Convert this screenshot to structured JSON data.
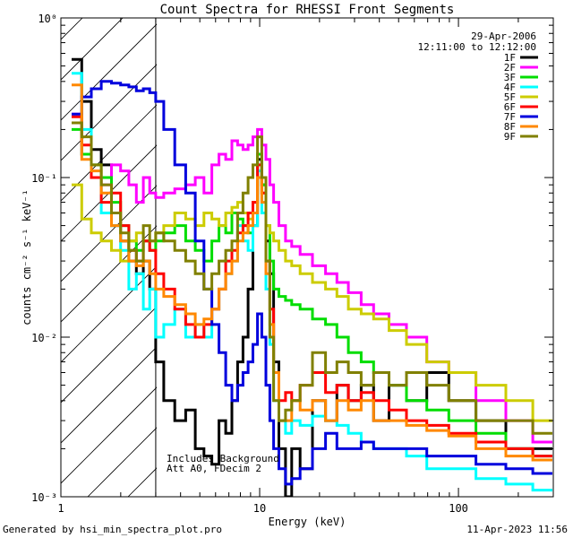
{
  "chart_data": {
    "type": "line",
    "title": "Count Spectra for RHESSI Front Segments",
    "xlabel": "Energy (keV)",
    "ylabel": "counts cm⁻² s⁻¹ keV⁻¹",
    "xscale": "log",
    "yscale": "log",
    "xlim": [
      1,
      300
    ],
    "ylim": [
      0.001,
      1
    ],
    "x_ticks": [
      {
        "value": 1,
        "label": "1"
      },
      {
        "value": 10,
        "label": "10"
      },
      {
        "value": 100,
        "label": "100"
      }
    ],
    "y_ticks": [
      {
        "value": 0.001,
        "label": "10⁻³"
      },
      {
        "value": 0.01,
        "label": "10⁻²"
      },
      {
        "value": 0.1,
        "label": "10⁻¹"
      },
      {
        "value": 1,
        "label": "10⁰"
      }
    ],
    "legend_position": "top-right",
    "date": "29-Apr-2006",
    "time_range": "12:11:00 to 12:12:00",
    "annotation_lines": [
      "Includes Background",
      "Att A0, FDecim 2"
    ],
    "hatched_region_x": [
      1,
      3
    ],
    "series": [
      {
        "name": "1F",
        "color": "#000000",
        "x": [
          1.2,
          1.35,
          1.5,
          1.7,
          1.9,
          2.1,
          2.3,
          2.5,
          2.7,
          2.9,
          3.1,
          3.5,
          4,
          4.5,
          5,
          5.5,
          6,
          6.5,
          7,
          7.5,
          8,
          8.5,
          9,
          9.5,
          10,
          10.5,
          11,
          11.5,
          12,
          13,
          14,
          15,
          17,
          20,
          23,
          26,
          30,
          35,
          40,
          50,
          60,
          80,
          100,
          150,
          200,
          280
        ],
        "y": [
          0.55,
          0.3,
          0.15,
          0.12,
          0.05,
          0.04,
          0.03,
          0.025,
          0.03,
          0.02,
          0.007,
          0.004,
          0.003,
          0.0035,
          0.002,
          0.0018,
          0.0016,
          0.003,
          0.0025,
          0.004,
          0.007,
          0.01,
          0.02,
          0.05,
          0.13,
          0.09,
          0.04,
          0.025,
          0.007,
          0.002,
          0.001,
          0.002,
          0.0015,
          0.004,
          0.003,
          0.005,
          0.004,
          0.005,
          0.003,
          0.005,
          0.004,
          0.006,
          0.004,
          0.003,
          0.002,
          0.002
        ]
      },
      {
        "name": "2F",
        "color": "#ff00ff",
        "x": [
          1.2,
          1.35,
          1.5,
          1.7,
          1.9,
          2.1,
          2.3,
          2.5,
          2.7,
          2.9,
          3.1,
          3.5,
          4,
          4.5,
          5,
          5.5,
          6,
          6.5,
          7,
          7.5,
          8,
          8.5,
          9,
          9.5,
          10,
          10.5,
          11,
          11.5,
          12,
          13,
          14,
          15,
          17,
          20,
          23,
          26,
          30,
          35,
          40,
          50,
          60,
          80,
          100,
          150,
          200,
          280
        ],
        "y": [
          0.25,
          0.14,
          0.1,
          0.09,
          0.12,
          0.11,
          0.09,
          0.07,
          0.1,
          0.08,
          0.075,
          0.08,
          0.085,
          0.09,
          0.1,
          0.08,
          0.12,
          0.14,
          0.13,
          0.17,
          0.16,
          0.15,
          0.16,
          0.18,
          0.2,
          0.16,
          0.13,
          0.09,
          0.07,
          0.05,
          0.04,
          0.037,
          0.033,
          0.028,
          0.025,
          0.022,
          0.019,
          0.016,
          0.014,
          0.012,
          0.01,
          0.007,
          0.006,
          0.004,
          0.003,
          0.0022
        ]
      },
      {
        "name": "3F",
        "color": "#00dd00",
        "x": [
          1.2,
          1.35,
          1.5,
          1.7,
          1.9,
          2.1,
          2.3,
          2.5,
          2.7,
          2.9,
          3.1,
          3.5,
          4,
          4.5,
          5,
          5.5,
          6,
          6.5,
          7,
          7.5,
          8,
          8.5,
          9,
          9.5,
          10,
          10.5,
          11,
          11.5,
          12,
          13,
          14,
          15,
          17,
          20,
          23,
          26,
          30,
          35,
          40,
          50,
          60,
          80,
          100,
          150,
          200,
          280
        ],
        "y": [
          0.2,
          0.14,
          0.12,
          0.1,
          0.07,
          0.05,
          0.04,
          0.035,
          0.04,
          0.035,
          0.04,
          0.045,
          0.05,
          0.04,
          0.035,
          0.03,
          0.04,
          0.05,
          0.045,
          0.06,
          0.055,
          0.05,
          0.045,
          0.06,
          0.14,
          0.09,
          0.05,
          0.03,
          0.02,
          0.018,
          0.017,
          0.016,
          0.015,
          0.013,
          0.012,
          0.01,
          0.008,
          0.007,
          0.006,
          0.005,
          0.004,
          0.0035,
          0.003,
          0.0025,
          0.002,
          0.0018
        ]
      },
      {
        "name": "4F",
        "color": "#00ffff",
        "x": [
          1.2,
          1.35,
          1.5,
          1.7,
          1.9,
          2.1,
          2.3,
          2.5,
          2.7,
          2.9,
          3.1,
          3.5,
          4,
          4.5,
          5,
          5.5,
          6,
          6.5,
          7,
          7.5,
          8,
          8.5,
          9,
          9.5,
          10,
          10.5,
          11,
          11.5,
          12,
          13,
          14,
          15,
          17,
          20,
          23,
          26,
          30,
          35,
          40,
          50,
          60,
          80,
          100,
          150,
          200,
          280
        ],
        "y": [
          0.45,
          0.2,
          0.1,
          0.06,
          0.05,
          0.035,
          0.02,
          0.025,
          0.015,
          0.02,
          0.01,
          0.012,
          0.015,
          0.01,
          0.012,
          0.01,
          0.015,
          0.02,
          0.025,
          0.03,
          0.05,
          0.04,
          0.035,
          0.05,
          0.11,
          0.06,
          0.02,
          0.009,
          0.004,
          0.003,
          0.0025,
          0.003,
          0.0028,
          0.0032,
          0.003,
          0.0028,
          0.0025,
          0.0022,
          0.002,
          0.002,
          0.0018,
          0.0015,
          0.0015,
          0.0013,
          0.0012,
          0.0011
        ]
      },
      {
        "name": "5F",
        "color": "#cccc00",
        "x": [
          1.2,
          1.35,
          1.5,
          1.7,
          1.9,
          2.1,
          2.3,
          2.5,
          2.7,
          2.9,
          3.1,
          3.5,
          4,
          4.5,
          5,
          5.5,
          6,
          6.5,
          7,
          7.5,
          8,
          8.5,
          9,
          9.5,
          10,
          10.5,
          11,
          11.5,
          12,
          13,
          14,
          15,
          17,
          20,
          23,
          26,
          30,
          35,
          40,
          50,
          60,
          80,
          100,
          150,
          200,
          280
        ],
        "y": [
          0.09,
          0.055,
          0.045,
          0.04,
          0.035,
          0.03,
          0.04,
          0.045,
          0.04,
          0.04,
          0.045,
          0.05,
          0.06,
          0.055,
          0.05,
          0.06,
          0.055,
          0.05,
          0.06,
          0.065,
          0.07,
          0.06,
          0.055,
          0.07,
          0.1,
          0.08,
          0.05,
          0.045,
          0.04,
          0.035,
          0.03,
          0.028,
          0.025,
          0.022,
          0.02,
          0.018,
          0.015,
          0.014,
          0.013,
          0.011,
          0.009,
          0.007,
          0.006,
          0.005,
          0.004,
          0.003
        ]
      },
      {
        "name": "6F",
        "color": "#ff0000",
        "x": [
          1.2,
          1.35,
          1.5,
          1.7,
          1.9,
          2.1,
          2.3,
          2.5,
          2.7,
          2.9,
          3.1,
          3.5,
          4,
          4.5,
          5,
          5.5,
          6,
          6.5,
          7,
          7.5,
          8,
          8.5,
          9,
          9.5,
          10,
          10.5,
          11,
          11.5,
          12,
          13,
          14,
          15,
          17,
          20,
          23,
          26,
          30,
          35,
          40,
          50,
          60,
          80,
          100,
          150,
          200,
          280
        ],
        "y": [
          0.24,
          0.16,
          0.1,
          0.07,
          0.08,
          0.05,
          0.035,
          0.03,
          0.04,
          0.035,
          0.025,
          0.02,
          0.015,
          0.012,
          0.01,
          0.012,
          0.015,
          0.02,
          0.03,
          0.035,
          0.045,
          0.05,
          0.06,
          0.07,
          0.12,
          0.08,
          0.03,
          0.015,
          0.006,
          0.004,
          0.0045,
          0.004,
          0.005,
          0.006,
          0.0045,
          0.005,
          0.004,
          0.0045,
          0.004,
          0.0035,
          0.003,
          0.0028,
          0.0025,
          0.0022,
          0.002,
          0.0018
        ]
      },
      {
        "name": "7F",
        "color": "#0000dd",
        "x": [
          1.2,
          1.35,
          1.5,
          1.7,
          1.9,
          2.1,
          2.3,
          2.5,
          2.7,
          2.9,
          3.1,
          3.5,
          4,
          4.5,
          5,
          5.5,
          6,
          6.5,
          7,
          7.5,
          8,
          8.5,
          9,
          9.5,
          10,
          10.5,
          11,
          11.5,
          12,
          13,
          14,
          15,
          17,
          20,
          23,
          26,
          30,
          35,
          40,
          50,
          60,
          80,
          100,
          150,
          200,
          280
        ],
        "y": [
          0.25,
          0.32,
          0.36,
          0.4,
          0.39,
          0.38,
          0.37,
          0.35,
          0.36,
          0.34,
          0.3,
          0.2,
          0.12,
          0.08,
          0.04,
          0.02,
          0.012,
          0.008,
          0.005,
          0.004,
          0.005,
          0.006,
          0.007,
          0.009,
          0.014,
          0.01,
          0.005,
          0.003,
          0.002,
          0.0015,
          0.0012,
          0.0013,
          0.0015,
          0.002,
          0.0025,
          0.002,
          0.002,
          0.0022,
          0.002,
          0.002,
          0.002,
          0.0018,
          0.0018,
          0.0016,
          0.0015,
          0.0014
        ]
      },
      {
        "name": "8F",
        "color": "#ff8800",
        "x": [
          1.2,
          1.35,
          1.5,
          1.7,
          1.9,
          2.1,
          2.3,
          2.5,
          2.7,
          2.9,
          3.1,
          3.5,
          4,
          4.5,
          5,
          5.5,
          6,
          6.5,
          7,
          7.5,
          8,
          8.5,
          9,
          9.5,
          10,
          10.5,
          11,
          11.5,
          12,
          13,
          14,
          15,
          17,
          20,
          23,
          26,
          30,
          35,
          40,
          50,
          60,
          80,
          100,
          150,
          200,
          280
        ],
        "y": [
          0.38,
          0.13,
          0.11,
          0.08,
          0.05,
          0.04,
          0.03,
          0.028,
          0.03,
          0.025,
          0.02,
          0.018,
          0.016,
          0.014,
          0.012,
          0.013,
          0.015,
          0.02,
          0.025,
          0.03,
          0.04,
          0.045,
          0.05,
          0.06,
          0.1,
          0.07,
          0.025,
          0.012,
          0.006,
          0.003,
          0.003,
          0.004,
          0.0035,
          0.004,
          0.003,
          0.004,
          0.0035,
          0.004,
          0.003,
          0.003,
          0.0028,
          0.0026,
          0.0024,
          0.002,
          0.0018,
          0.0017
        ]
      },
      {
        "name": "9F",
        "color": "#808000",
        "x": [
          1.2,
          1.35,
          1.5,
          1.7,
          1.9,
          2.1,
          2.3,
          2.5,
          2.7,
          2.9,
          3.1,
          3.5,
          4,
          4.5,
          5,
          5.5,
          6,
          6.5,
          7,
          7.5,
          8,
          8.5,
          9,
          9.5,
          10,
          10.5,
          11,
          11.5,
          12,
          13,
          14,
          15,
          17,
          20,
          23,
          26,
          30,
          35,
          40,
          50,
          60,
          80,
          100,
          150,
          200,
          280
        ],
        "y": [
          0.22,
          0.18,
          0.12,
          0.09,
          0.06,
          0.045,
          0.035,
          0.03,
          0.05,
          0.04,
          0.045,
          0.04,
          0.035,
          0.03,
          0.025,
          0.02,
          0.025,
          0.03,
          0.035,
          0.04,
          0.06,
          0.08,
          0.1,
          0.12,
          0.18,
          0.1,
          0.03,
          0.01,
          0.004,
          0.003,
          0.0035,
          0.004,
          0.005,
          0.008,
          0.006,
          0.007,
          0.006,
          0.005,
          0.006,
          0.005,
          0.006,
          0.005,
          0.004,
          0.003,
          0.003,
          0.0025
        ]
      }
    ]
  },
  "footer": {
    "generated_by": "Generated by hsi_min_spectra_plot.pro",
    "timestamp": "11-Apr-2023 11:56"
  }
}
